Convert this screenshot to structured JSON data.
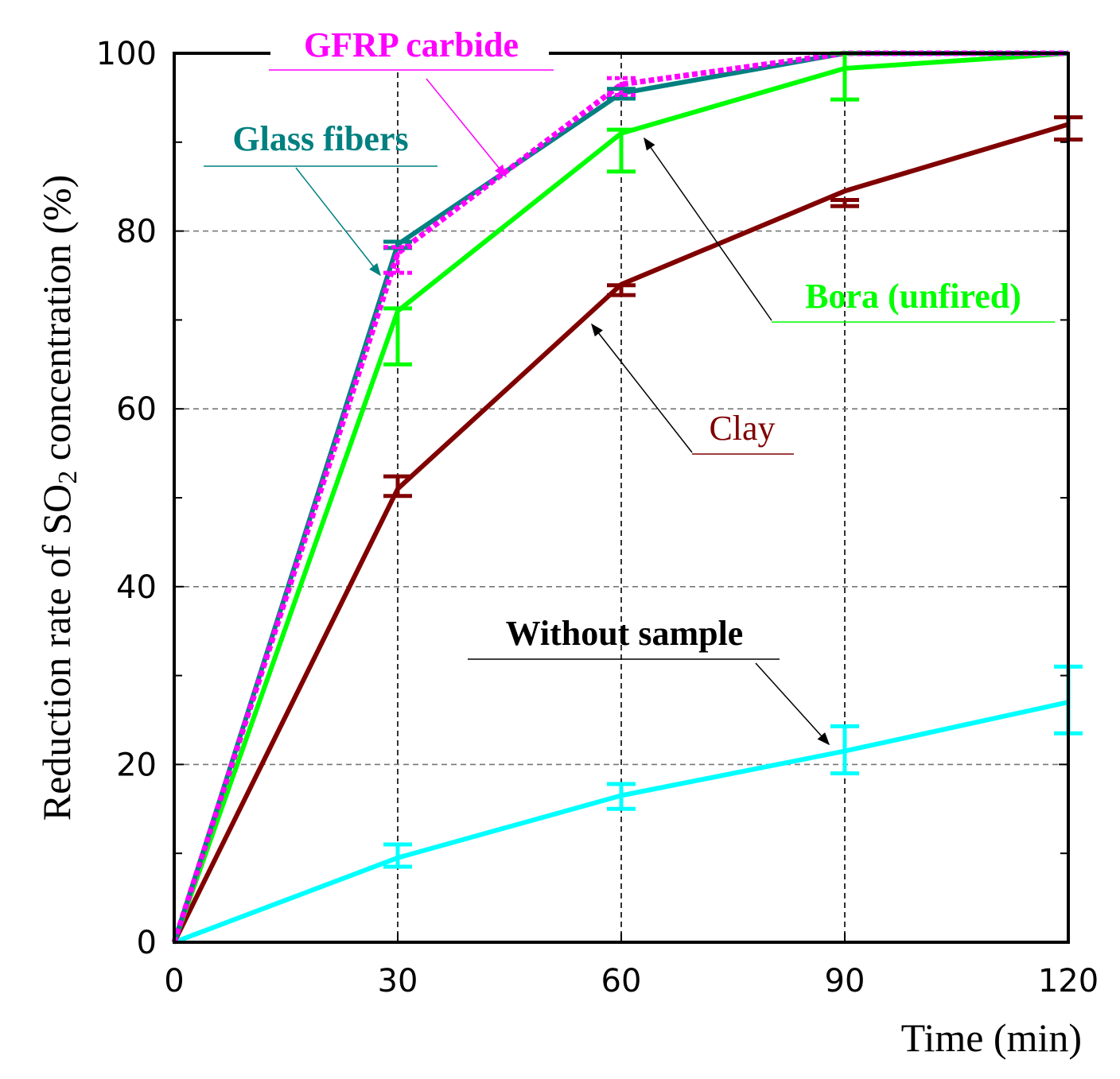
{
  "chart_data": {
    "type": "line",
    "xlabel": "Time (min)",
    "ylabel": "Reduction rate of SO2 concentration (%)",
    "ylabel_main": "Reduction rate of SO",
    "ylabel_sub": "2",
    "ylabel_tail": " concentration (%)",
    "xlim": [
      0,
      120
    ],
    "ylim": [
      0,
      100
    ],
    "x_ticks": [
      0,
      30,
      60,
      90,
      120
    ],
    "y_ticks": [
      0,
      20,
      40,
      60,
      80,
      100
    ],
    "x_tick_labels": [
      "0",
      "30",
      "60",
      "90",
      "120"
    ],
    "y_tick_labels": [
      "0",
      "20",
      "40",
      "60",
      "80",
      "100"
    ],
    "grid": "dashed gridlines at x = 30, 60, 90 and y = 20, 40, 60, 80",
    "x": [
      0,
      30,
      60,
      90,
      120
    ],
    "series": [
      {
        "name": "Without sample",
        "color": "#00FFFF",
        "style": "solid",
        "values": [
          0,
          9.5,
          16.5,
          21.5,
          27
        ],
        "err_low": [
          0,
          8.5,
          15.0,
          19.0,
          23.5
        ],
        "err_high": [
          0,
          11.0,
          17.8,
          24.3,
          31.0
        ]
      },
      {
        "name": "Clay",
        "color": "#800000",
        "style": "solid",
        "values": [
          0,
          51,
          74,
          84.5,
          92
        ],
        "err_low": [
          0,
          50.2,
          72.8,
          82.8,
          90.3
        ],
        "err_high": [
          0,
          52.4,
          73.9,
          83.5,
          92.8
        ]
      },
      {
        "name": "Bora (unfired)",
        "color": "#00FF00",
        "style": "solid",
        "values": [
          0,
          71,
          91,
          98.3,
          100
        ],
        "err_low": [
          0,
          65.0,
          86.7,
          94.8,
          100
        ],
        "err_high": [
          0,
          71.3,
          91.4,
          100,
          100
        ]
      },
      {
        "name": "Glass fibers",
        "color": "#008080",
        "style": "solid",
        "values": [
          0,
          78.5,
          95.5,
          100,
          100
        ],
        "err_low": [
          0,
          78.1,
          94.9,
          100,
          100
        ],
        "err_high": [
          0,
          78.8,
          96.0,
          100,
          100
        ]
      },
      {
        "name": "GFRP carbide",
        "color": "#FF00FF",
        "style": "dotted",
        "values": [
          0,
          77.5,
          96.5,
          100,
          100
        ],
        "err_low": [
          0,
          75.3,
          95.3,
          100,
          100
        ],
        "err_high": [
          0,
          78.2,
          97.2,
          100,
          100
        ]
      }
    ],
    "annotations": [
      {
        "text": "GFRP carbide",
        "color": "#FF00FF",
        "bold": true,
        "points_to_x": 45
      },
      {
        "text": "Glass fibers",
        "color": "#008080",
        "bold": true,
        "points_to_x": 28
      },
      {
        "text": "Bora (unfired)",
        "color": "#00FF00",
        "bold": true,
        "points_to_x": 63
      },
      {
        "text": "Clay",
        "color": "#800000",
        "bold": false,
        "points_to_x": 56
      },
      {
        "text": "Without sample",
        "color": "#000000",
        "bold": true,
        "points_to_x": 87
      }
    ]
  }
}
